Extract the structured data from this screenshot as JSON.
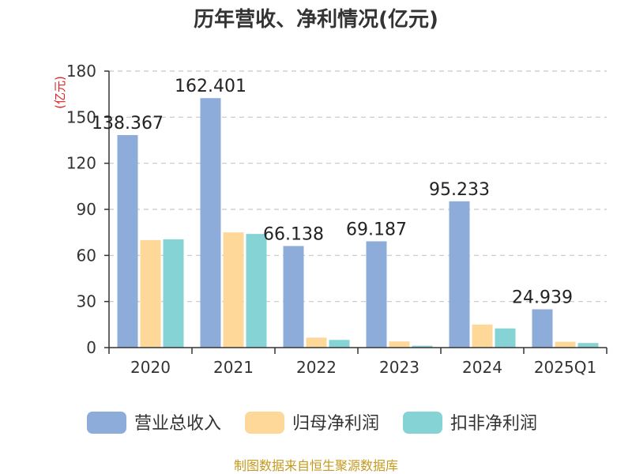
{
  "chart_data": {
    "type": "bar",
    "title": "历年营收、净利情况(亿元)",
    "ylabel": "(亿元)",
    "ylim": [
      0,
      180
    ],
    "yticks": [
      0,
      30,
      60,
      90,
      120,
      150,
      180
    ],
    "categories": [
      "2020",
      "2021",
      "2022",
      "2023",
      "2024",
      "2025Q1"
    ],
    "series": [
      {
        "name": "营业总收入",
        "color": "#8eacd9",
        "values": [
          138.367,
          162.401,
          66.138,
          69.187,
          95.233,
          24.939
        ]
      },
      {
        "name": "归母净利润",
        "color": "#fdd898",
        "values": [
          70,
          75,
          6.5,
          4,
          15,
          3.8
        ]
      },
      {
        "name": "扣非净利润",
        "color": "#86d3d6",
        "values": [
          70.5,
          74,
          5,
          1.2,
          12.5,
          3
        ]
      }
    ],
    "data_labels": {
      "series": 0,
      "text": [
        "138.367",
        "162.401",
        "66.138",
        "69.187",
        "95.233",
        "24.939"
      ]
    },
    "grid": true,
    "legend_position": "bottom"
  },
  "source": "制图数据来自恒生聚源数据库"
}
